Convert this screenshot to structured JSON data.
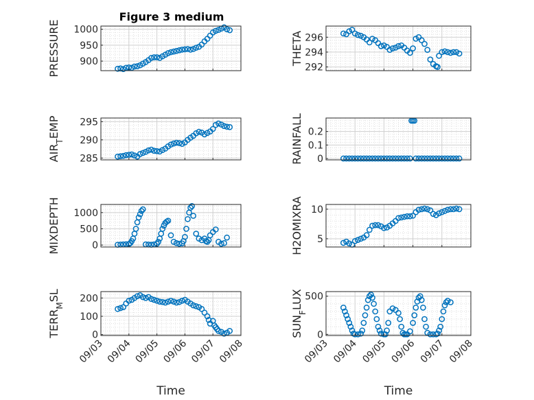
{
  "figure": {
    "title": "Figure 3 medium"
  },
  "colors": {
    "marker": "#0072bd",
    "axis": "#262626",
    "grid": "#d9d9d9"
  },
  "chart_data": [
    {
      "type": "scatter",
      "ylabel": "PRESSURE",
      "ylabel_sub": "",
      "title": "Figure 3 medium",
      "xlabel": "",
      "xticks": [
        "09/03",
        "09/04",
        "09/05",
        "09/06",
        "09/07",
        "09/08"
      ],
      "xlim": [
        0,
        5
      ],
      "ylim": [
        870,
        1010
      ],
      "yticks": [
        900,
        950,
        1000
      ],
      "show_xticklabels": false,
      "x": [
        0.6,
        0.7,
        0.8,
        0.9,
        1.0,
        1.1,
        1.2,
        1.3,
        1.4,
        1.5,
        1.6,
        1.7,
        1.8,
        1.9,
        2.0,
        2.1,
        2.2,
        2.3,
        2.4,
        2.5,
        2.6,
        2.7,
        2.8,
        2.9,
        3.0,
        3.1,
        3.2,
        3.3,
        3.4,
        3.5,
        3.6,
        3.7,
        3.8,
        3.9,
        4.0,
        4.1,
        4.2,
        4.3,
        4.4,
        4.5,
        4.6
      ],
      "y": [
        876,
        877,
        875,
        879,
        880,
        879,
        883,
        884,
        887,
        892,
        897,
        903,
        910,
        912,
        912,
        910,
        915,
        920,
        925,
        928,
        930,
        932,
        934,
        936,
        937,
        938,
        936,
        938,
        942,
        945,
        952,
        962,
        970,
        980,
        990,
        995,
        998,
        1002,
        1006,
        1000,
        997
      ]
    },
    {
      "type": "scatter",
      "ylabel": "THETA",
      "ylabel_sub": "",
      "xlabel": "",
      "xticks": [
        "09/03",
        "09/04",
        "09/05",
        "09/06",
        "09/07",
        "09/08"
      ],
      "xlim": [
        0,
        5
      ],
      "ylim": [
        291.5,
        297.5
      ],
      "yticks": [
        292,
        294,
        296
      ],
      "show_xticklabels": false,
      "x": [
        0.6,
        0.7,
        0.8,
        0.9,
        1.0,
        1.1,
        1.2,
        1.3,
        1.4,
        1.5,
        1.6,
        1.7,
        1.8,
        1.9,
        2.0,
        2.1,
        2.2,
        2.3,
        2.4,
        2.5,
        2.6,
        2.7,
        2.8,
        2.9,
        3.0,
        3.1,
        3.2,
        3.3,
        3.4,
        3.5,
        3.6,
        3.7,
        3.8,
        3.85,
        3.9,
        4.0,
        4.1,
        4.2,
        4.3,
        4.4,
        4.5,
        4.6
      ],
      "y": [
        296.5,
        296.4,
        296.8,
        297.0,
        296.5,
        296.3,
        296.2,
        296.0,
        295.7,
        295.3,
        295.8,
        295.6,
        295.2,
        294.8,
        294.9,
        294.7,
        294.3,
        294.5,
        294.6,
        294.8,
        294.9,
        294.6,
        294.2,
        293.9,
        294.5,
        295.8,
        296.0,
        295.6,
        295.1,
        294.3,
        293.0,
        292.4,
        292.1,
        292.0,
        293.5,
        294.0,
        294.1,
        294.0,
        293.9,
        294.0,
        294.0,
        293.8
      ]
    },
    {
      "type": "scatter",
      "ylabel": "AIR",
      "ylabel_sub": "T",
      "ylabel_rest": "EMP",
      "xlabel": "",
      "xticks": [
        "09/03",
        "09/04",
        "09/05",
        "09/06",
        "09/07",
        "09/08"
      ],
      "xlim": [
        0,
        5
      ],
      "ylim": [
        284.5,
        296
      ],
      "yticks": [
        285,
        290,
        295
      ],
      "show_xticklabels": false,
      "x": [
        0.6,
        0.7,
        0.8,
        0.9,
        1.0,
        1.1,
        1.2,
        1.3,
        1.4,
        1.5,
        1.6,
        1.7,
        1.8,
        1.9,
        2.0,
        2.1,
        2.2,
        2.3,
        2.4,
        2.5,
        2.6,
        2.7,
        2.8,
        2.9,
        3.0,
        3.1,
        3.2,
        3.3,
        3.4,
        3.5,
        3.6,
        3.7,
        3.8,
        3.9,
        4.0,
        4.1,
        4.2,
        4.3,
        4.4,
        4.5,
        4.6
      ],
      "y": [
        285.4,
        285.5,
        285.6,
        285.8,
        285.9,
        286.0,
        285.7,
        285.4,
        286.1,
        286.4,
        286.7,
        287.1,
        287.3,
        287.0,
        286.9,
        286.8,
        287.2,
        287.6,
        288.2,
        288.7,
        289.0,
        289.2,
        289.1,
        288.9,
        289.3,
        290.0,
        290.6,
        291.1,
        291.8,
        292.2,
        292.0,
        291.5,
        291.9,
        292.3,
        293.0,
        294.1,
        294.5,
        294.2,
        293.8,
        293.6,
        293.5
      ]
    },
    {
      "type": "scatter",
      "ylabel": "RAINFALL",
      "ylabel_sub": "",
      "xlabel": "",
      "xticks": [
        "09/03",
        "09/04",
        "09/05",
        "09/06",
        "09/07",
        "09/08"
      ],
      "xlim": [
        0,
        5
      ],
      "ylim": [
        -0.01,
        0.3
      ],
      "yticks": [
        0,
        0.1,
        0.2
      ],
      "show_xticklabels": false,
      "x": [
        0.6,
        0.7,
        0.8,
        0.9,
        1.0,
        1.1,
        1.2,
        1.3,
        1.4,
        1.5,
        1.6,
        1.7,
        1.8,
        1.9,
        2.0,
        2.1,
        2.2,
        2.3,
        2.4,
        2.5,
        2.6,
        2.7,
        2.8,
        2.9,
        2.95,
        3.0,
        3.05,
        3.1,
        3.2,
        3.3,
        3.4,
        3.5,
        3.6,
        3.7,
        3.8,
        3.9,
        4.0,
        4.1,
        4.2,
        4.3,
        4.4,
        4.5,
        4.6
      ],
      "y": [
        0,
        0,
        0,
        0,
        0,
        0,
        0,
        0,
        0,
        0,
        0,
        0,
        0,
        0,
        0,
        0,
        0,
        0,
        0,
        0,
        0,
        0,
        0,
        0,
        0.28,
        0.28,
        0.28,
        0,
        0,
        0,
        0,
        0,
        0,
        0,
        0,
        0,
        0,
        0,
        0,
        0,
        0,
        0,
        0
      ]
    },
    {
      "type": "scatter",
      "ylabel": "MIXDEPTH",
      "ylabel_sub": "",
      "xlabel": "",
      "xticks": [
        "09/03",
        "09/04",
        "09/05",
        "09/06",
        "09/07",
        "09/08"
      ],
      "xlim": [
        0,
        5
      ],
      "ylim": [
        -60,
        1250
      ],
      "yticks": [
        0,
        500,
        1000
      ],
      "show_xticklabels": false,
      "x": [
        0.6,
        0.7,
        0.8,
        0.9,
        1.0,
        1.05,
        1.1,
        1.15,
        1.2,
        1.25,
        1.3,
        1.35,
        1.4,
        1.45,
        1.5,
        1.6,
        1.7,
        1.8,
        1.9,
        2.0,
        2.05,
        2.1,
        2.15,
        2.2,
        2.25,
        2.3,
        2.35,
        2.4,
        2.5,
        2.6,
        2.7,
        2.8,
        2.9,
        2.95,
        3.0,
        3.05,
        3.1,
        3.15,
        3.2,
        3.25,
        3.3,
        3.4,
        3.5,
        3.6,
        3.7,
        3.75,
        3.8,
        3.85,
        3.9,
        4.0,
        4.1,
        4.2,
        4.3,
        4.4,
        4.5
      ],
      "y": [
        10,
        15,
        20,
        25,
        30,
        60,
        120,
        200,
        350,
        500,
        700,
        850,
        950,
        1050,
        1100,
        20,
        15,
        10,
        20,
        40,
        100,
        200,
        350,
        500,
        600,
        680,
        720,
        750,
        300,
        100,
        60,
        40,
        50,
        120,
        250,
        500,
        800,
        1000,
        1150,
        1200,
        900,
        350,
        200,
        150,
        200,
        120,
        100,
        150,
        300,
        400,
        480,
        100,
        40,
        60,
        230
      ]
    },
    {
      "type": "scatter",
      "ylabel": "H2OMIXRA",
      "ylabel_sub": "",
      "xlabel": "",
      "xticks": [
        "09/03",
        "09/04",
        "09/05",
        "09/06",
        "09/07",
        "09/08"
      ],
      "xlim": [
        0,
        5
      ],
      "ylim": [
        3.6,
        10.8
      ],
      "yticks": [
        5,
        10
      ],
      "show_xticklabels": false,
      "x": [
        0.6,
        0.7,
        0.8,
        0.9,
        1.0,
        1.1,
        1.2,
        1.3,
        1.4,
        1.5,
        1.6,
        1.7,
        1.8,
        1.9,
        2.0,
        2.1,
        2.2,
        2.3,
        2.4,
        2.5,
        2.6,
        2.7,
        2.8,
        2.9,
        3.0,
        3.1,
        3.2,
        3.3,
        3.4,
        3.5,
        3.6,
        3.7,
        3.8,
        3.9,
        4.0,
        4.1,
        4.2,
        4.3,
        4.4,
        4.5,
        4.6
      ],
      "y": [
        4.3,
        4.5,
        4.2,
        4.0,
        4.6,
        4.8,
        5.0,
        5.2,
        5.6,
        6.5,
        7.2,
        7.3,
        7.3,
        7.1,
        6.8,
        6.9,
        7.2,
        7.6,
        8.0,
        8.5,
        8.6,
        8.7,
        8.8,
        8.8,
        8.9,
        9.5,
        9.9,
        10.0,
        10.1,
        10.0,
        9.8,
        9.2,
        9.0,
        9.3,
        9.5,
        9.7,
        9.9,
        10.0,
        10.0,
        10.1,
        10.0
      ]
    },
    {
      "type": "scatter",
      "ylabel": "TERR",
      "ylabel_sub": "M",
      "ylabel_rest": "SL",
      "xlabel": "Time",
      "xticks": [
        "09/03",
        "09/04",
        "09/05",
        "09/06",
        "09/07",
        "09/08"
      ],
      "xlim": [
        0,
        5
      ],
      "ylim": [
        -5,
        235
      ],
      "yticks": [
        0,
        100,
        200
      ],
      "show_xticklabels": true,
      "x": [
        0.6,
        0.7,
        0.8,
        0.9,
        1.0,
        1.1,
        1.2,
        1.3,
        1.4,
        1.5,
        1.6,
        1.7,
        1.8,
        1.9,
        2.0,
        2.1,
        2.2,
        2.3,
        2.4,
        2.5,
        2.6,
        2.7,
        2.8,
        2.9,
        3.0,
        3.1,
        3.2,
        3.3,
        3.4,
        3.5,
        3.6,
        3.7,
        3.8,
        3.85,
        3.9,
        4.0,
        4.05,
        4.1,
        4.15,
        4.2,
        4.3,
        4.4,
        4.5,
        4.6
      ],
      "y": [
        140,
        145,
        150,
        170,
        185,
        190,
        200,
        210,
        215,
        205,
        200,
        205,
        195,
        190,
        185,
        180,
        178,
        175,
        180,
        185,
        180,
        175,
        178,
        185,
        190,
        180,
        170,
        160,
        155,
        150,
        140,
        120,
        100,
        80,
        60,
        75,
        50,
        40,
        30,
        20,
        15,
        5,
        10,
        20
      ]
    },
    {
      "type": "scatter",
      "ylabel": "SUN",
      "ylabel_sub": "F",
      "ylabel_rest": "LUX",
      "xlabel": "Time",
      "xticks": [
        "09/03",
        "09/04",
        "09/05",
        "09/06",
        "09/07",
        "09/08"
      ],
      "xlim": [
        0,
        5
      ],
      "ylim": [
        -15,
        560
      ],
      "yticks": [
        0,
        500
      ],
      "show_xticklabels": true,
      "x": [
        0.6,
        0.65,
        0.7,
        0.75,
        0.8,
        0.85,
        0.9,
        0.95,
        1.0,
        1.1,
        1.2,
        1.25,
        1.3,
        1.35,
        1.4,
        1.45,
        1.5,
        1.55,
        1.6,
        1.65,
        1.7,
        1.75,
        1.8,
        1.85,
        1.9,
        2.0,
        2.05,
        2.1,
        2.15,
        2.2,
        2.3,
        2.4,
        2.5,
        2.55,
        2.6,
        2.65,
        2.7,
        2.75,
        2.8,
        2.9,
        3.0,
        3.05,
        3.1,
        3.15,
        3.2,
        3.25,
        3.3,
        3.35,
        3.4,
        3.45,
        3.5,
        3.6,
        3.7,
        3.8,
        3.85,
        3.9,
        3.95,
        4.0,
        4.05,
        4.1,
        4.15,
        4.2,
        4.3
      ],
      "y": [
        350,
        300,
        250,
        200,
        150,
        100,
        50,
        10,
        0,
        0,
        10,
        50,
        150,
        250,
        350,
        450,
        500,
        520,
        480,
        400,
        300,
        200,
        100,
        50,
        10,
        0,
        0,
        50,
        150,
        300,
        340,
        320,
        280,
        200,
        100,
        20,
        0,
        0,
        0,
        40,
        150,
        250,
        350,
        430,
        480,
        500,
        450,
        350,
        200,
        100,
        20,
        0,
        0,
        0,
        10,
        50,
        100,
        200,
        300,
        380,
        420,
        440,
        420
      ]
    }
  ]
}
